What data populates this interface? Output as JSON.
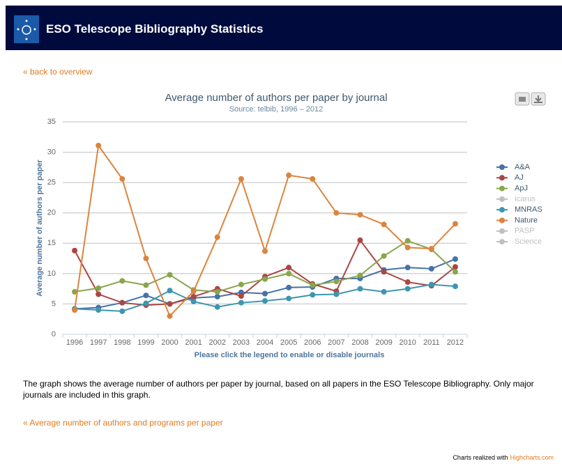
{
  "header": {
    "title": "ESO Telescope Bibliography Statistics"
  },
  "back_link": "« back to overview",
  "chart_data": {
    "type": "line",
    "title": "Average number of authors per paper by journal",
    "subtitle": "Source: telbib, 1996 – 2012",
    "x_label": "Please click the legend to enable or disable journals",
    "y_label": "Average number of authors per paper",
    "categories": [
      "1996",
      "1997",
      "1998",
      "1999",
      "2000",
      "2001",
      "2002",
      "2003",
      "2004",
      "2005",
      "2006",
      "2007",
      "2008",
      "2009",
      "2010",
      "2011",
      "2012"
    ],
    "ylim": [
      0,
      35
    ],
    "yticks": [
      0,
      5,
      10,
      15,
      20,
      25,
      30,
      35
    ],
    "grid": true,
    "legend": "right",
    "series": [
      {
        "name": "A&A",
        "color": "#4572a7",
        "visible": true,
        "values": [
          4.2,
          4.4,
          5.2,
          6.4,
          5.0,
          6.0,
          6.2,
          6.9,
          6.7,
          7.7,
          7.8,
          9.2,
          9.2,
          10.6,
          11.0,
          10.8,
          12.4
        ]
      },
      {
        "name": "AJ",
        "color": "#aa4643",
        "visible": true,
        "values": [
          13.8,
          6.6,
          5.2,
          4.8,
          5.0,
          6.2,
          7.5,
          6.3,
          9.5,
          11.0,
          8.3,
          7.1,
          15.5,
          10.3,
          8.6,
          8.0,
          11.1
        ]
      },
      {
        "name": "ApJ",
        "color": "#89a54e",
        "visible": true,
        "values": [
          7.0,
          7.6,
          8.8,
          8.1,
          9.8,
          7.3,
          7.0,
          8.2,
          9.1,
          10.0,
          8.1,
          8.7,
          9.7,
          12.9,
          15.4,
          14.0,
          10.3
        ]
      },
      {
        "name": "Icarus",
        "color": "#80699b",
        "visible": false
      },
      {
        "name": "MNRAS",
        "color": "#3d96ae",
        "visible": true,
        "values": [
          4.2,
          4.0,
          3.8,
          5.1,
          7.2,
          5.4,
          4.5,
          5.2,
          5.5,
          5.9,
          6.5,
          6.6,
          7.5,
          7.0,
          7.5,
          8.2,
          7.9
        ]
      },
      {
        "name": "Nature",
        "color": "#db843d",
        "visible": true,
        "values": [
          4.0,
          31.1,
          25.6,
          12.5,
          3.0,
          7.1,
          16.0,
          25.6,
          13.7,
          26.2,
          25.6,
          20.0,
          19.7,
          18.1,
          14.3,
          14.1,
          18.2
        ]
      },
      {
        "name": "PASP",
        "color": "#92a8cd",
        "visible": false
      },
      {
        "name": "Science",
        "color": "#a47d7c",
        "visible": false
      }
    ]
  },
  "description": "The graph shows the average number of authors per paper by journal, based on all papers in the ESO Telescope Bibliography. Only major journals are included in this graph.",
  "related_link": "« Average number of authors and programs per paper",
  "credit": {
    "text": "Charts realized with",
    "link": "Highcharts.com"
  }
}
